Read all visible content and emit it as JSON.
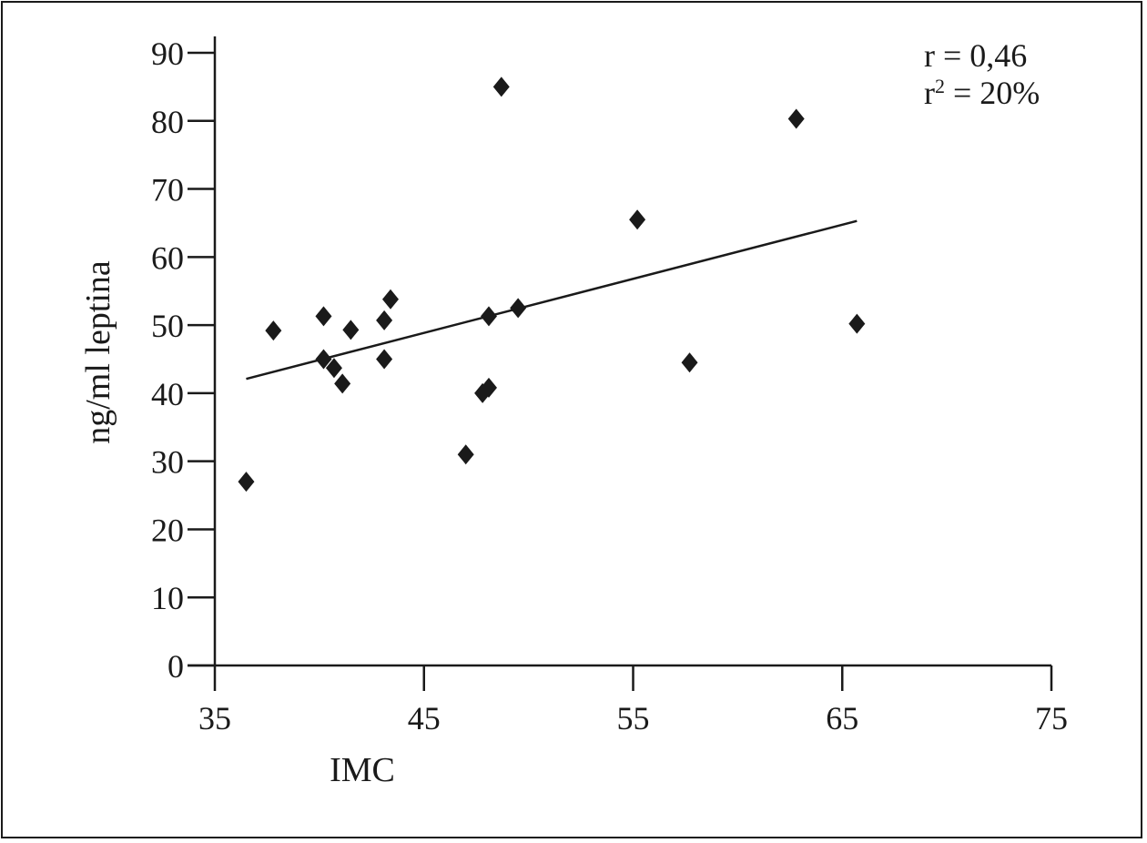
{
  "chart_data": {
    "type": "scatter",
    "xlabel": "IMC",
    "ylabel": "ng/ml leptina",
    "xlim": [
      35,
      75
    ],
    "ylim": [
      0,
      90
    ],
    "x_ticks": [
      35,
      45,
      55,
      65,
      75
    ],
    "y_ticks": [
      0,
      10,
      20,
      30,
      40,
      50,
      60,
      70,
      80,
      90
    ],
    "grid": false,
    "series": [
      {
        "points": [
          {
            "x": 36.5,
            "y": 27
          },
          {
            "x": 37.8,
            "y": 49.2
          },
          {
            "x": 40.2,
            "y": 51.3
          },
          {
            "x": 40.2,
            "y": 45
          },
          {
            "x": 40.7,
            "y": 43.7
          },
          {
            "x": 41.1,
            "y": 41.4
          },
          {
            "x": 41.5,
            "y": 49.3
          },
          {
            "x": 43.1,
            "y": 50.7
          },
          {
            "x": 43.1,
            "y": 45
          },
          {
            "x": 43.4,
            "y": 53.8
          },
          {
            "x": 47.0,
            "y": 31
          },
          {
            "x": 47.8,
            "y": 40
          },
          {
            "x": 48.1,
            "y": 40.8
          },
          {
            "x": 48.1,
            "y": 51.3
          },
          {
            "x": 48.7,
            "y": 85
          },
          {
            "x": 49.5,
            "y": 52.5
          },
          {
            "x": 55.2,
            "y": 65.5
          },
          {
            "x": 57.7,
            "y": 44.5
          },
          {
            "x": 62.8,
            "y": 80.3
          },
          {
            "x": 65.7,
            "y": 50.2
          }
        ]
      }
    ],
    "trendline": {
      "x": [
        36.5,
        65.7
      ],
      "y": [
        42.1,
        65.3
      ]
    },
    "annotations": {
      "r_text": "r = 0,46",
      "r2_prefix": "r",
      "r2_sup": "2",
      "r2_suffix": " = 20%"
    }
  }
}
